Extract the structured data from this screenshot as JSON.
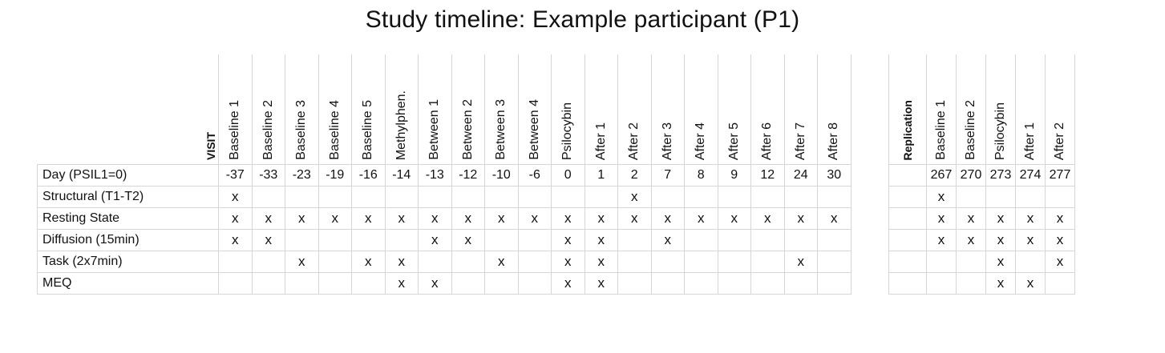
{
  "title": "Study timeline: Example participant (P1)",
  "main": {
    "visit_label": "VISIT",
    "columns": [
      "Baseline 1",
      "Baseline 2",
      "Baseline 3",
      "Baseline 4",
      "Baseline 5",
      "Methylphen.",
      "Between 1",
      "Between 2",
      "Between 3",
      "Between 4",
      "Psilocybin",
      "After 1",
      "After 2",
      "After 3",
      "After 4",
      "After 5",
      "After 6",
      "After 7",
      "After 8"
    ],
    "rows": [
      {
        "label": "Day (PSIL1=0)",
        "cells": [
          "-37",
          "-33",
          "-23",
          "-19",
          "-16",
          "-14",
          "-13",
          "-12",
          "-10",
          "-6",
          "0",
          "1",
          "2",
          "7",
          "8",
          "9",
          "12",
          "24",
          "30"
        ]
      },
      {
        "label": "Structural (T1-T2)",
        "cells": [
          "x",
          "",
          "",
          "",
          "",
          "",
          "",
          "",
          "",
          "",
          "",
          "",
          "x",
          "",
          "",
          "",
          "",
          "",
          ""
        ]
      },
      {
        "label": "Resting State",
        "cells": [
          "x",
          "x",
          "x",
          "x",
          "x",
          "x",
          "x",
          "x",
          "x",
          "x",
          "x",
          "x",
          "x",
          "x",
          "x",
          "x",
          "x",
          "x",
          "x"
        ]
      },
      {
        "label": "Diffusion (15min)",
        "cells": [
          "x",
          "x",
          "",
          "",
          "",
          "",
          "x",
          "x",
          "",
          "",
          "x",
          "x",
          "",
          "x",
          "",
          "",
          "",
          "",
          ""
        ]
      },
      {
        "label": "Task (2x7min)",
        "cells": [
          "",
          "",
          "x",
          "",
          "x",
          "x",
          "",
          "",
          "x",
          "",
          "x",
          "x",
          "",
          "",
          "",
          "",
          "",
          "x",
          ""
        ]
      },
      {
        "label": "MEQ",
        "cells": [
          "",
          "",
          "",
          "",
          "",
          "x",
          "x",
          "",
          "",
          "",
          "x",
          "x",
          "",
          "",
          "",
          "",
          "",
          "",
          ""
        ]
      }
    ]
  },
  "replication": {
    "label": "Replication",
    "columns": [
      "Baseline 1",
      "Baseline 2",
      "Psilocybin",
      "After 1",
      "After 2"
    ],
    "rows": [
      {
        "cells": [
          "267",
          "270",
          "273",
          "274",
          "277"
        ]
      },
      {
        "cells": [
          "x",
          "",
          "",
          "",
          ""
        ]
      },
      {
        "cells": [
          "x",
          "x",
          "x",
          "x",
          "x"
        ]
      },
      {
        "cells": [
          "x",
          "x",
          "x",
          "x",
          "x"
        ]
      },
      {
        "cells": [
          "",
          "",
          "x",
          "",
          "x"
        ]
      },
      {
        "cells": [
          "",
          "",
          "x",
          "x",
          ""
        ]
      }
    ]
  }
}
